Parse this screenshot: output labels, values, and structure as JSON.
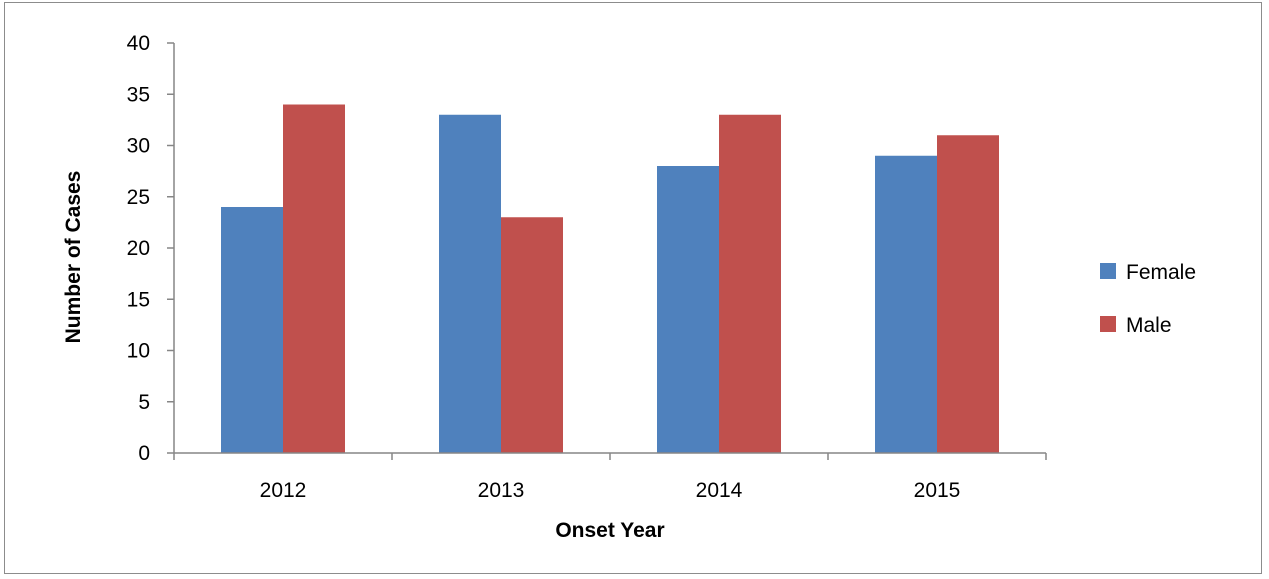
{
  "chart_data": {
    "type": "bar",
    "categories": [
      "2012",
      "2013",
      "2014",
      "2015"
    ],
    "series": [
      {
        "name": "Female",
        "values": [
          24,
          33,
          28,
          29
        ],
        "color": "#4f81bd"
      },
      {
        "name": "Male",
        "values": [
          34,
          23,
          33,
          31
        ],
        "color": "#c0504d"
      }
    ],
    "title": "",
    "xlabel": "Onset Year",
    "ylabel": "Number of Cases",
    "ylim": [
      0,
      40
    ],
    "yticks": [
      0,
      5,
      10,
      15,
      20,
      25,
      30,
      35,
      40
    ],
    "grid": false,
    "legend_position": "right"
  }
}
